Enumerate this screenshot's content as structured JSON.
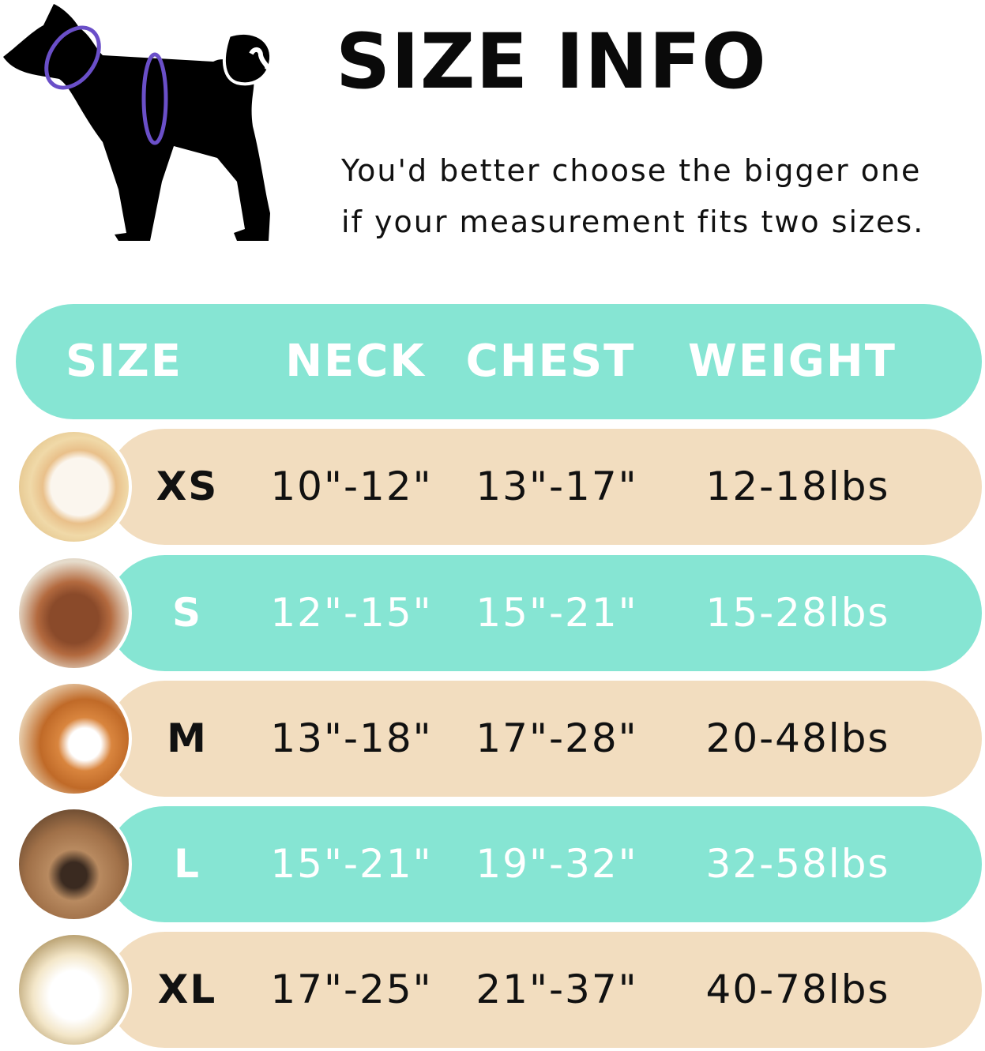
{
  "title": "SIZE INFO",
  "tip_line1": "You'd better choose the bigger one",
  "tip_line2": "if your measurement fits two sizes.",
  "colors": {
    "teal": "#86E5D3",
    "beige": "#F2DDBF",
    "measure_ring": "#6A4FC8"
  },
  "icons": {
    "illustration": "dog-silhouette-neck-chest-measure"
  },
  "table": {
    "headers": [
      "SIZE",
      "NECK",
      "CHEST",
      "WEIGHT"
    ],
    "rows": [
      {
        "size": "XS",
        "neck": "10\"-12\"",
        "chest": "13\"-17\"",
        "weight": "12-18lbs",
        "color": "beige"
      },
      {
        "size": "S",
        "neck": "12\"-15\"",
        "chest": "15\"-21\"",
        "weight": "15-28lbs",
        "color": "teal"
      },
      {
        "size": "M",
        "neck": "13\"-18\"",
        "chest": "17\"-28\"",
        "weight": "20-48lbs",
        "color": "beige"
      },
      {
        "size": "L",
        "neck": "15\"-21\"",
        "chest": "19\"-32\"",
        "weight": "32-58lbs",
        "color": "teal"
      },
      {
        "size": "XL",
        "neck": "17\"-25\"",
        "chest": "21\"-37\"",
        "weight": "40-78lbs",
        "color": "beige"
      }
    ]
  }
}
